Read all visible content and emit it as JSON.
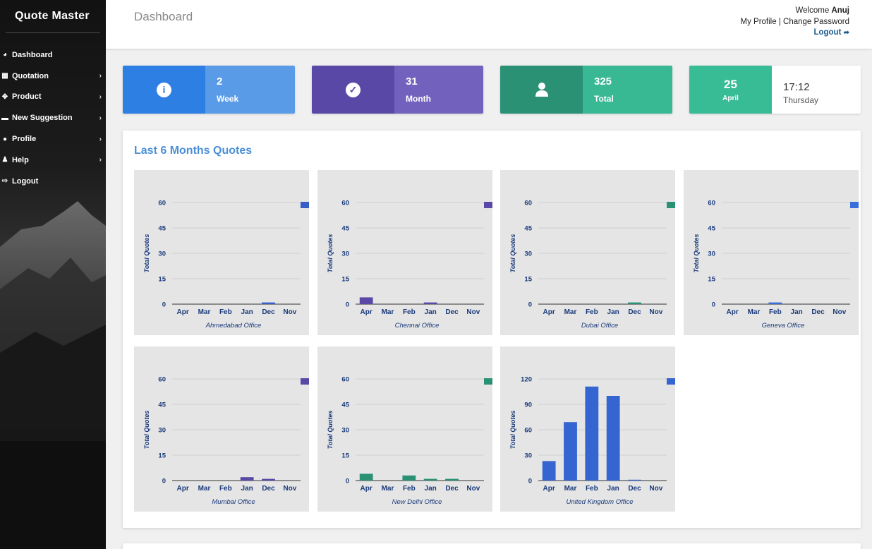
{
  "app": {
    "title": "Quote Master"
  },
  "sidebar": {
    "items": [
      {
        "label": "Dashboard",
        "icon": "dashboard-icon",
        "glyph": "◕",
        "has_submenu": false
      },
      {
        "label": "Quotation",
        "icon": "grid-icon",
        "glyph": "▦",
        "has_submenu": true
      },
      {
        "label": "Product",
        "icon": "product-icon",
        "glyph": "✥",
        "has_submenu": true
      },
      {
        "label": "New Suggestion",
        "icon": "suggestion-icon",
        "glyph": "▬",
        "has_submenu": true
      },
      {
        "label": "Profile",
        "icon": "user-icon",
        "glyph": "●",
        "has_submenu": true
      },
      {
        "label": "Help",
        "icon": "help-icon",
        "glyph": "♟",
        "has_submenu": true
      },
      {
        "label": "Logout",
        "icon": "logout-icon",
        "glyph": "⇨",
        "has_submenu": false
      }
    ]
  },
  "header": {
    "page_title": "Dashboard",
    "welcome_prefix": "Welcome ",
    "user_name": "Anuj",
    "my_profile": "My Profile",
    "separator": " | ",
    "change_password": "Change Password",
    "logout": "Logout"
  },
  "stats": [
    {
      "value": "2",
      "label": "Week",
      "icon": "info-icon",
      "glyph": "i",
      "colors": {
        "left": "#2e7fe3",
        "right": "#5a9be8",
        "icon": "#2e7fe3"
      }
    },
    {
      "value": "31",
      "label": "Month",
      "icon": "check-circle-icon",
      "glyph": "✓",
      "colors": {
        "left": "#5a48a6",
        "right": "#7262bd",
        "icon": "#5a48a6"
      }
    },
    {
      "value": "325",
      "label": "Total",
      "icon": "user-icon",
      "glyph": "",
      "colors": {
        "left": "#2a9175",
        "right": "#38b893",
        "icon": "#2a9175"
      }
    }
  ],
  "date_card": {
    "day": "25",
    "month": "April",
    "time": "17:12",
    "weekday": "Thursday",
    "colors": {
      "left": "#38bc96",
      "right": "#ffffff"
    }
  },
  "panel": {
    "title": "Last 6 Months Quotes"
  },
  "chart_data": [
    {
      "type": "bar",
      "title": "Ahmedabad Office",
      "ylabel": "Total Quotes",
      "categories": [
        "Apr",
        "Mar",
        "Feb",
        "Jan",
        "Dec",
        "Nov"
      ],
      "values": [
        0,
        0,
        0,
        0,
        1,
        0
      ],
      "ylim": [
        0,
        60
      ],
      "yticks": [
        0,
        15,
        30,
        45,
        60
      ],
      "color": "#3a5ec8",
      "grid": true,
      "legend": "right"
    },
    {
      "type": "bar",
      "title": "Chennai Office",
      "ylabel": "Total Quotes",
      "categories": [
        "Apr",
        "Mar",
        "Feb",
        "Jan",
        "Dec",
        "Nov"
      ],
      "values": [
        4,
        0,
        0,
        1,
        0,
        0
      ],
      "ylim": [
        0,
        60
      ],
      "yticks": [
        0,
        15,
        30,
        45,
        60
      ],
      "color": "#5a48a6",
      "grid": true,
      "legend": "right"
    },
    {
      "type": "bar",
      "title": "Dubai Office",
      "ylabel": "Total Quotes",
      "categories": [
        "Apr",
        "Mar",
        "Feb",
        "Jan",
        "Dec",
        "Nov"
      ],
      "values": [
        0,
        0,
        0,
        0,
        1,
        0
      ],
      "ylim": [
        0,
        60
      ],
      "yticks": [
        0,
        15,
        30,
        45,
        60
      ],
      "color": "#2a9175",
      "grid": true,
      "legend": "right"
    },
    {
      "type": "bar",
      "title": "Geneva Office",
      "ylabel": "Total Quotes",
      "categories": [
        "Apr",
        "Mar",
        "Feb",
        "Jan",
        "Dec",
        "Nov"
      ],
      "values": [
        0,
        0,
        1,
        0,
        0,
        0
      ],
      "ylim": [
        0,
        60
      ],
      "yticks": [
        0,
        15,
        30,
        45,
        60
      ],
      "color": "#3a6ed8",
      "grid": true,
      "legend": "right"
    },
    {
      "type": "bar",
      "title": "Mumbai Office",
      "ylabel": "Total Quotes",
      "categories": [
        "Apr",
        "Mar",
        "Feb",
        "Jan",
        "Dec",
        "Nov"
      ],
      "values": [
        0,
        0,
        0,
        2,
        1,
        0
      ],
      "ylim": [
        0,
        60
      ],
      "yticks": [
        0,
        15,
        30,
        45,
        60
      ],
      "color": "#5a48a6",
      "grid": true,
      "legend": "right"
    },
    {
      "type": "bar",
      "title": "New Delhi Office",
      "ylabel": "Total Quotes",
      "categories": [
        "Apr",
        "Mar",
        "Feb",
        "Jan",
        "Dec",
        "Nov"
      ],
      "values": [
        4,
        0,
        3,
        1,
        1,
        0
      ],
      "ylim": [
        0,
        60
      ],
      "yticks": [
        0,
        15,
        30,
        45,
        60
      ],
      "color": "#2a9175",
      "grid": true,
      "legend": "right"
    },
    {
      "type": "bar",
      "title": "United Kingdom Office",
      "ylabel": "Total Quotes",
      "categories": [
        "Apr",
        "Mar",
        "Feb",
        "Jan",
        "Dec",
        "Nov"
      ],
      "values": [
        23,
        69,
        111,
        100,
        1,
        0
      ],
      "ylim": [
        0,
        120
      ],
      "yticks": [
        0,
        30,
        60,
        90,
        120
      ],
      "color": "#3465d1",
      "grid": true,
      "legend": "right"
    }
  ]
}
